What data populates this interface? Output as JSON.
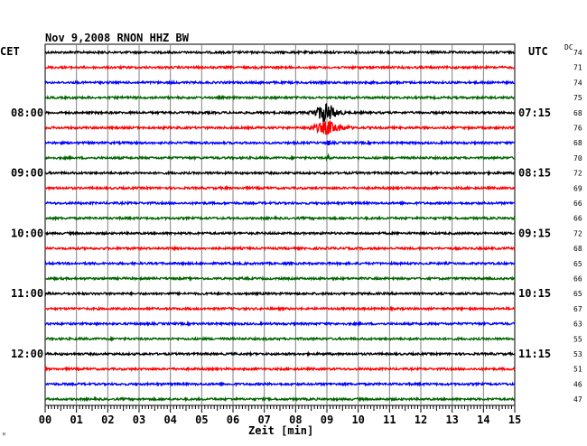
{
  "chart_data": {
    "type": "line",
    "title": "Nov 9,2008   RNON HHZ BW",
    "left_axis_label": "CET",
    "right_axis_label": "UTC",
    "dc_label": "DC",
    "xlabel": "Zeit [min]",
    "corner_mark": "ꟸ",
    "x_ticks": [
      "00",
      "01",
      "02",
      "03",
      "04",
      "05",
      "06",
      "07",
      "08",
      "09",
      "10",
      "11",
      "12",
      "13",
      "14",
      "15"
    ],
    "xlim": [
      0,
      15
    ],
    "grid": true,
    "trace_colors": [
      "#000000",
      "#ff0000",
      "#0000ff",
      "#006400"
    ],
    "traces": [
      {
        "dc": "74",
        "cet": "",
        "utc": ""
      },
      {
        "dc": "71",
        "cet": "",
        "utc": ""
      },
      {
        "dc": "74",
        "cet": "",
        "utc": ""
      },
      {
        "dc": "75",
        "cet": "",
        "utc": ""
      },
      {
        "dc": "68",
        "cet": "08:00",
        "utc": "07:15"
      },
      {
        "dc": "76",
        "cet": "",
        "utc": ""
      },
      {
        "dc": "68",
        "cet": "",
        "utc": ""
      },
      {
        "dc": "70",
        "cet": "",
        "utc": ""
      },
      {
        "dc": "72",
        "cet": "09:00",
        "utc": "08:15"
      },
      {
        "dc": "69",
        "cet": "",
        "utc": ""
      },
      {
        "dc": "66",
        "cet": "",
        "utc": ""
      },
      {
        "dc": "66",
        "cet": "",
        "utc": ""
      },
      {
        "dc": "72",
        "cet": "10:00",
        "utc": "09:15"
      },
      {
        "dc": "68",
        "cet": "",
        "utc": ""
      },
      {
        "dc": "65",
        "cet": "",
        "utc": ""
      },
      {
        "dc": "66",
        "cet": "",
        "utc": ""
      },
      {
        "dc": "65",
        "cet": "11:00",
        "utc": "10:15"
      },
      {
        "dc": "67",
        "cet": "",
        "utc": ""
      },
      {
        "dc": "63",
        "cet": "",
        "utc": ""
      },
      {
        "dc": "55",
        "cet": "",
        "utc": ""
      },
      {
        "dc": "53",
        "cet": "12:00",
        "utc": "11:15"
      },
      {
        "dc": "51",
        "cet": "",
        "utc": ""
      },
      {
        "dc": "46",
        "cet": "",
        "utc": ""
      },
      {
        "dc": "47",
        "cet": "",
        "utc": ""
      }
    ],
    "events": [
      {
        "trace": 4,
        "start_min": 8.2,
        "peak_min": 9.0,
        "end_min": 10.3,
        "peak_amplitude": 5.0
      },
      {
        "trace": 5,
        "start_min": 8.0,
        "peak_min": 9.05,
        "end_min": 11.0,
        "peak_amplitude": 3.5
      },
      {
        "trace": 6,
        "start_min": 8.85,
        "peak_min": 9.05,
        "end_min": 9.6,
        "peak_amplitude": 1.4
      },
      {
        "trace": 7,
        "start_min": 8.9,
        "peak_min": 9.05,
        "end_min": 9.4,
        "peak_amplitude": 1.6
      },
      {
        "trace": 8,
        "start_min": 8.95,
        "peak_min": 9.05,
        "end_min": 9.2,
        "peak_amplitude": 0.9
      },
      {
        "trace": 14,
        "start_min": 1.2,
        "peak_min": 1.4,
        "end_min": 1.7,
        "peak_amplitude": 0.4
      },
      {
        "trace": 14,
        "start_min": 3.0,
        "peak_min": 3.1,
        "end_min": 3.2,
        "peak_amplitude": 0.35
      },
      {
        "trace": 17,
        "start_min": 14.0,
        "peak_min": 14.15,
        "end_min": 14.3,
        "peak_amplitude": 0.4
      },
      {
        "trace": 21,
        "start_min": 4.7,
        "peak_min": 4.8,
        "end_min": 4.9,
        "peak_amplitude": 0.25
      },
      {
        "trace": 21,
        "start_min": 9.6,
        "peak_min": 9.75,
        "end_min": 9.9,
        "peak_amplitude": 0.25
      }
    ]
  }
}
